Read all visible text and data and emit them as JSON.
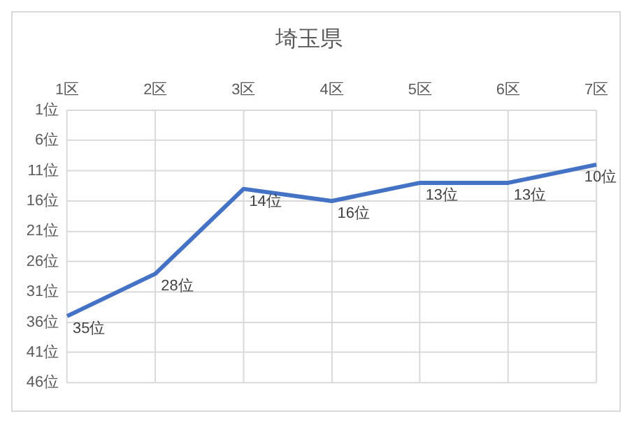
{
  "chart_data": {
    "type": "line",
    "title": "埼玉県",
    "categories": [
      "1区",
      "2区",
      "3区",
      "4区",
      "5区",
      "6区",
      "7区"
    ],
    "series": [
      {
        "color": "#4472c4",
        "values": [
          35,
          28,
          14,
          16,
          13,
          13,
          10
        ],
        "value_labels": [
          "35位",
          "28位",
          "14位",
          "16位",
          "13位",
          "13位",
          "10位"
        ]
      }
    ],
    "ylim": [
      46,
      1
    ],
    "yticks": [
      {
        "value": 1,
        "label": "1位"
      },
      {
        "value": 6,
        "label": "6位"
      },
      {
        "value": 11,
        "label": "11位"
      },
      {
        "value": 16,
        "label": "16位"
      },
      {
        "value": 21,
        "label": "21位"
      },
      {
        "value": 26,
        "label": "26位"
      },
      {
        "value": 31,
        "label": "31位"
      },
      {
        "value": 36,
        "label": "36位"
      },
      {
        "value": 41,
        "label": "41位"
      },
      {
        "value": 46,
        "label": "46位"
      }
    ],
    "grid": true,
    "legend": false,
    "marker": "none",
    "line_style": "solid"
  }
}
